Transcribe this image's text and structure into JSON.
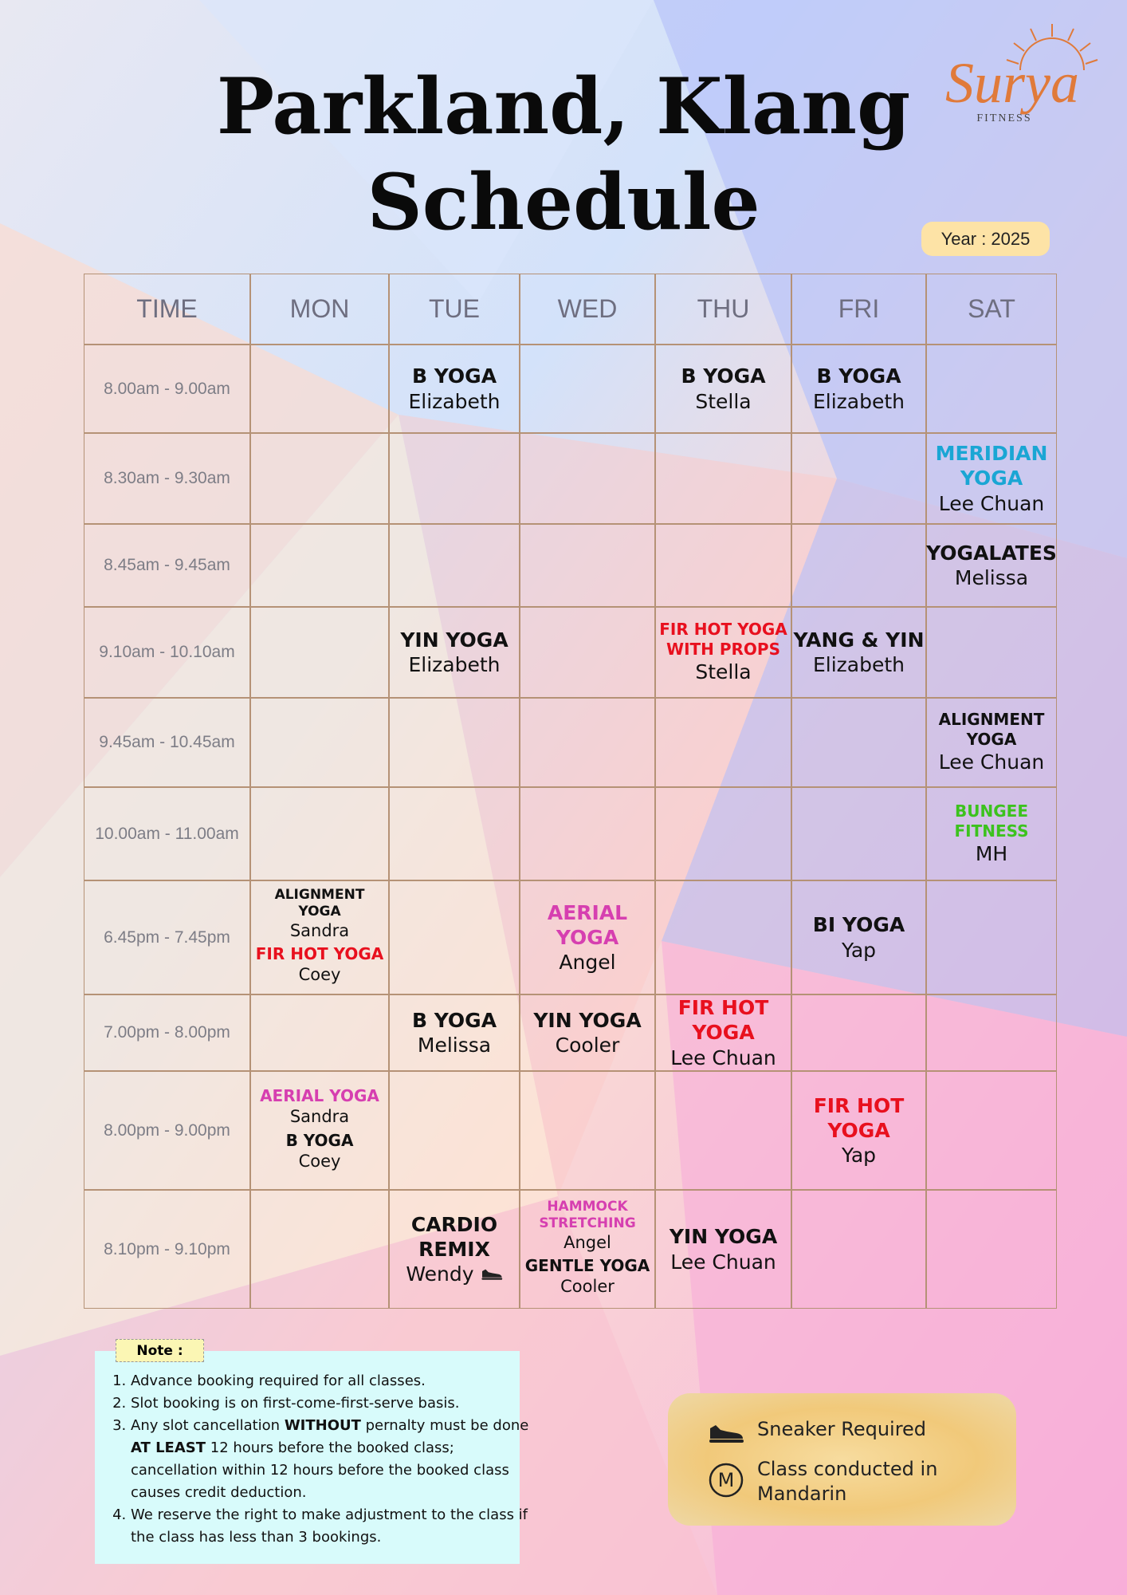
{
  "header": {
    "title": [
      "Parkland, Klang",
      "Schedule"
    ],
    "year": "Year : 2025",
    "logo": {
      "name": "Surya",
      "subtitle": "FITNESS"
    }
  },
  "table": {
    "columns": [
      "TIME",
      "MON",
      "TUE",
      "WED",
      "THU",
      "FRI",
      "SAT"
    ],
    "rows": [
      {
        "time": "8.00am - 9.00am",
        "cells": [
          [],
          [
            {
              "class": "B YOGA",
              "instructor": "Elizabeth",
              "color": "#111111"
            }
          ],
          [],
          [
            {
              "class": "B YOGA",
              "instructor": "Stella",
              "color": "#111111"
            }
          ],
          [
            {
              "class": "B YOGA",
              "instructor": "Elizabeth",
              "color": "#111111"
            }
          ],
          []
        ]
      },
      {
        "time": "8.30am - 9.30am",
        "cells": [
          [],
          [],
          [],
          [],
          [],
          [
            {
              "class": "MERIDIAN YOGA",
              "instructor": "Lee Chuan",
              "color": "#1aa6d4"
            }
          ]
        ]
      },
      {
        "time": "8.45am - 9.45am",
        "cells": [
          [],
          [],
          [],
          [],
          [],
          [
            {
              "class": "YOGALATES",
              "instructor": "Melissa",
              "color": "#111111"
            }
          ]
        ]
      },
      {
        "time": "9.10am - 10.10am",
        "cells": [
          [],
          [
            {
              "class": "YIN YOGA",
              "instructor": "Elizabeth",
              "color": "#111111"
            }
          ],
          [],
          [
            {
              "class": "FIR HOT YOGA WITH PROPS",
              "instructor": "Stella",
              "color": "#e8101e"
            }
          ],
          [
            {
              "class": "YANG & YIN",
              "instructor": "Elizabeth",
              "color": "#111111"
            }
          ],
          []
        ]
      },
      {
        "time": "9.45am - 10.45am",
        "cells": [
          [],
          [],
          [],
          [],
          [],
          [
            {
              "class": "ALIGNMENT YOGA",
              "instructor": "Lee Chuan",
              "color": "#111111"
            }
          ]
        ]
      },
      {
        "time": "10.00am - 11.00am",
        "cells": [
          [],
          [],
          [],
          [],
          [],
          [
            {
              "class": "BUNGEE FITNESS",
              "instructor": "MH",
              "color": "#3cc21e"
            }
          ]
        ]
      },
      {
        "time": "6.45pm - 7.45pm",
        "cells": [
          [
            {
              "class": "ALIGNMENT YOGA",
              "instructor": "Sandra",
              "color": "#111111"
            },
            {
              "class": "FIR HOT YOGA",
              "instructor": "Coey",
              "color": "#e8101e"
            }
          ],
          [],
          [
            {
              "class": "AERIAL YOGA",
              "instructor": "Angel",
              "color": "#d63fb0"
            }
          ],
          [],
          [
            {
              "class": "BI YOGA",
              "instructor": "Yap",
              "color": "#111111"
            }
          ],
          []
        ]
      },
      {
        "time": "7.00pm - 8.00pm",
        "cells": [
          [],
          [
            {
              "class": "B YOGA",
              "instructor": "Melissa",
              "color": "#111111"
            }
          ],
          [
            {
              "class": "YIN YOGA",
              "instructor": "Cooler",
              "color": "#111111"
            }
          ],
          [
            {
              "class": "FIR HOT YOGA",
              "instructor": "Lee Chuan",
              "color": "#e8101e"
            }
          ],
          [],
          []
        ]
      },
      {
        "time": "8.00pm - 9.00pm",
        "cells": [
          [
            {
              "class": "AERIAL YOGA",
              "instructor": "Sandra",
              "color": "#d63fb0"
            },
            {
              "class": "B YOGA",
              "instructor": "Coey",
              "color": "#111111"
            }
          ],
          [],
          [],
          [],
          [
            {
              "class": "FIR HOT YOGA",
              "instructor": "Yap",
              "color": "#e8101e"
            }
          ],
          []
        ]
      },
      {
        "time": "8.10pm - 9.10pm",
        "cells": [
          [],
          [
            {
              "class": "CARDIO REMIX",
              "instructor": "Wendy",
              "color": "#111111",
              "sneaker": true
            }
          ],
          [
            {
              "class": "HAMMOCK STRETCHING",
              "instructor": "Angel",
              "color": "#d63fb0"
            },
            {
              "class": "GENTLE YOGA",
              "instructor": "Cooler",
              "color": "#111111"
            }
          ],
          [
            {
              "class": "YIN YOGA",
              "instructor": "Lee Chuan",
              "color": "#111111"
            }
          ],
          [],
          []
        ]
      }
    ]
  },
  "notes": {
    "label": "Note :",
    "items": [
      [
        {
          "text": "Advance booking required for all classes."
        }
      ],
      [
        {
          "text": "Slot booking is on first-come-first-serve basis."
        }
      ],
      [
        {
          "text": "Any slot cancellation "
        },
        {
          "text": "WITHOUT",
          "bold": true
        },
        {
          "text": " pernalty must be done "
        },
        {
          "text": "AT LEAST",
          "bold": true
        },
        {
          "text": " 12 hours before the booked class; cancellation within 12 hours before the booked class causes credit deduction."
        }
      ],
      [
        {
          "text": "We reserve the right to make adjustment to the class if the class has less than 3 bookings."
        }
      ]
    ]
  },
  "legend": {
    "sneaker": "Sneaker Required",
    "mandarin": {
      "symbol": "M",
      "label": "Class conducted in Mandarin"
    }
  }
}
